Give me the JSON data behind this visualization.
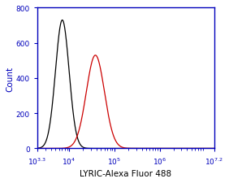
{
  "title": "",
  "xlabel": "LYRIC-Alexa Fluor 488",
  "ylabel": "Count",
  "xlim_log": [
    3.3,
    7.2
  ],
  "ylim": [
    0,
    800
  ],
  "yticks": [
    0,
    200,
    400,
    600,
    800
  ],
  "black_peak_log": 3.85,
  "black_peak_height": 730,
  "black_sigma_log": 0.15,
  "red_peak_log": 4.58,
  "red_peak_height": 530,
  "red_sigma_log": 0.2,
  "black_color": "#000000",
  "red_color": "#cc0000",
  "bg_color": "#ffffff",
  "spine_color": "#0000bb",
  "tick_color": "#0000bb",
  "label_color": "#0000bb",
  "xlabel_color": "#000000",
  "axis_label_fontsize": 7.5,
  "tick_label_fontsize": 6.5
}
